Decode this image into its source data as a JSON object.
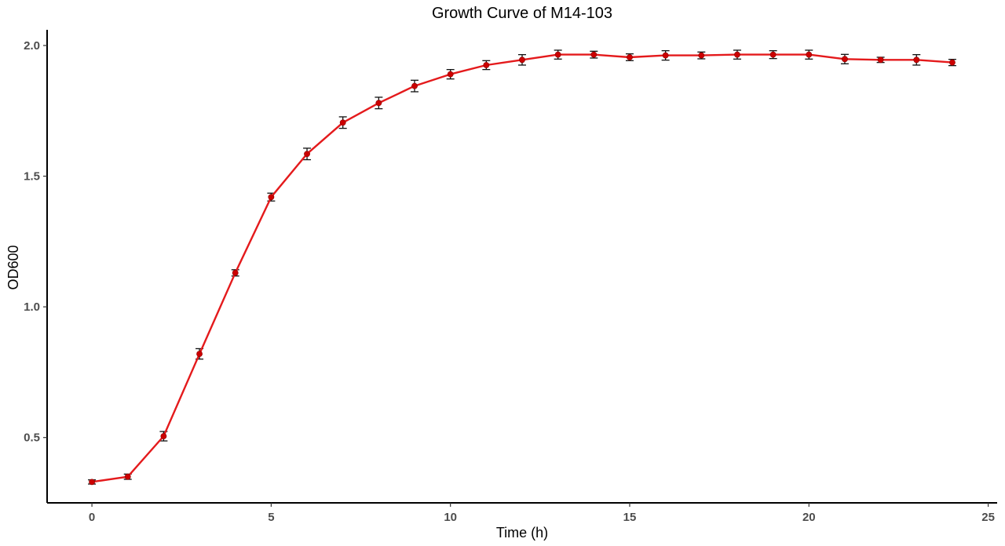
{
  "chart_data": {
    "type": "line",
    "title": "Growth Curve of M14-103",
    "xlabel": "Time (h)",
    "ylabel": "OD600",
    "xlim": [
      -1.25,
      25.25
    ],
    "ylim": [
      0.25,
      2.06
    ],
    "xticks": [
      0,
      5,
      10,
      15,
      20,
      25
    ],
    "yticks": [
      0.5,
      1.0,
      1.5,
      2.0
    ],
    "xtick_labels": [
      "0",
      "5",
      "10",
      "15",
      "20",
      "25"
    ],
    "ytick_labels": [
      "0.5",
      "1.0",
      "1.5",
      "2.0"
    ],
    "grid": false,
    "series": [
      {
        "name": "M14-103",
        "color": "#e41a1c",
        "marker_color": "#cc0000",
        "x": [
          0,
          1,
          2,
          3,
          4,
          5,
          6,
          7,
          8,
          9,
          10,
          11,
          12,
          13,
          14,
          15,
          16,
          17,
          18,
          19,
          20,
          21,
          22,
          23,
          24
        ],
        "y": [
          0.33,
          0.35,
          0.505,
          0.82,
          1.13,
          1.42,
          1.585,
          1.705,
          1.78,
          1.845,
          1.89,
          1.925,
          1.945,
          1.965,
          1.965,
          1.955,
          1.962,
          1.962,
          1.965,
          1.965,
          1.965,
          1.948,
          1.945,
          1.945,
          1.935
        ],
        "err": [
          0.008,
          0.01,
          0.018,
          0.02,
          0.012,
          0.015,
          0.022,
          0.022,
          0.022,
          0.022,
          0.018,
          0.017,
          0.02,
          0.017,
          0.013,
          0.013,
          0.018,
          0.013,
          0.017,
          0.015,
          0.017,
          0.018,
          0.01,
          0.02,
          0.012
        ]
      }
    ]
  }
}
